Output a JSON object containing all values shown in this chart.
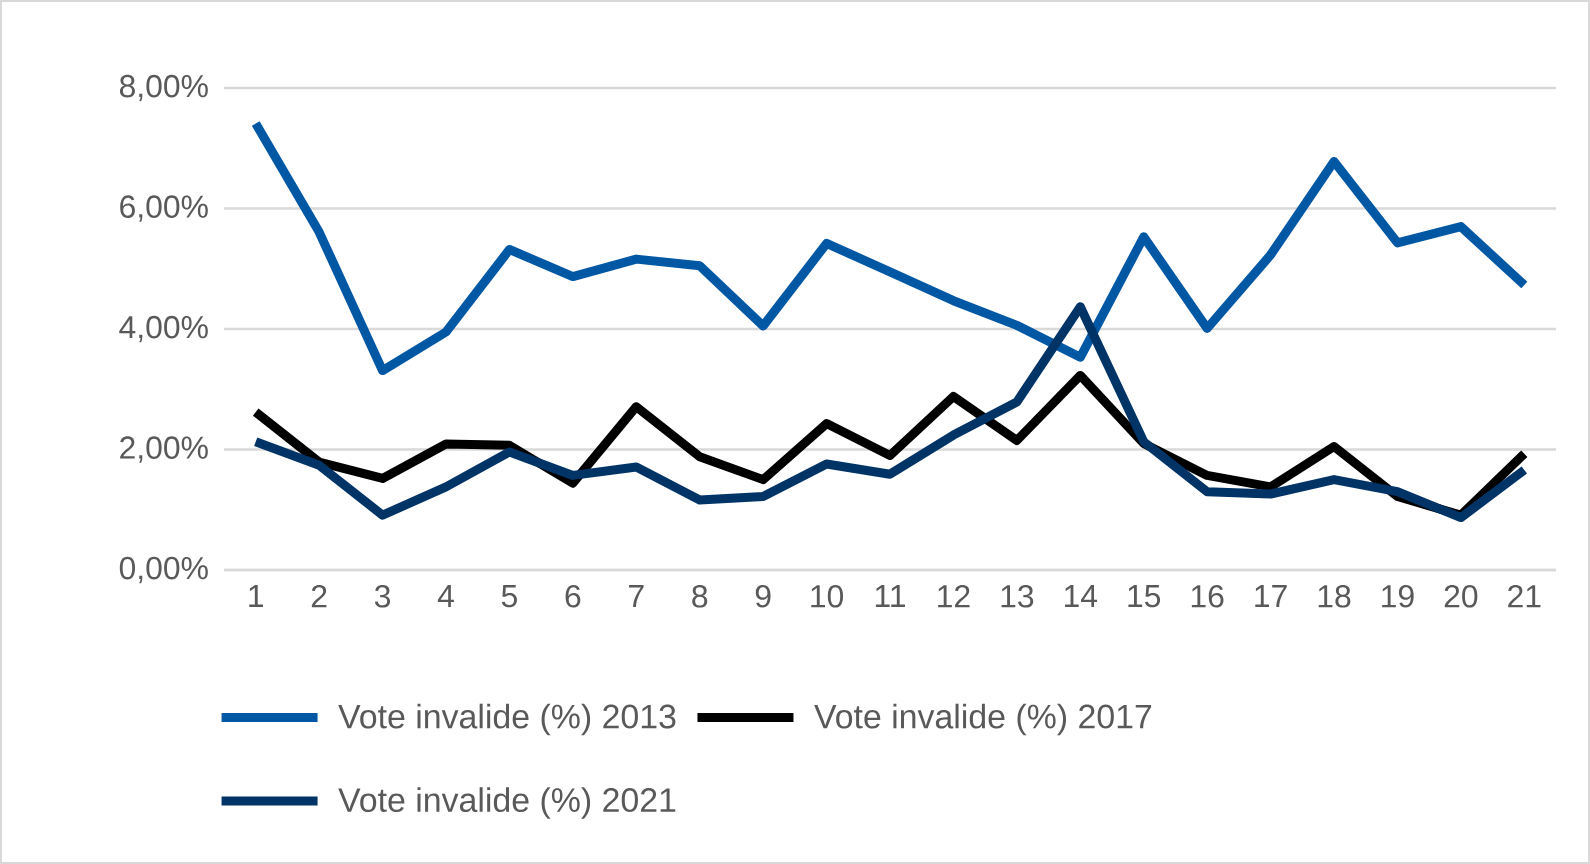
{
  "chart_data": {
    "type": "line",
    "categories": [
      "1",
      "2",
      "3",
      "4",
      "5",
      "6",
      "7",
      "8",
      "9",
      "10",
      "11",
      "12",
      "13",
      "14",
      "15",
      "16",
      "17",
      "18",
      "19",
      "20",
      "21"
    ],
    "series": [
      {
        "name": "Vote invalide (%) 2013",
        "color": "#0057a4",
        "values": [
          7.41,
          5.61,
          3.31,
          3.95,
          5.32,
          4.87,
          5.16,
          5.05,
          4.05,
          5.42,
          4.95,
          4.47,
          4.06,
          3.53,
          5.53,
          4.01,
          5.23,
          6.78,
          5.43,
          5.7,
          4.73
        ]
      },
      {
        "name": "Vote invalide (%) 2017",
        "color": "#000000",
        "values": [
          2.62,
          1.79,
          1.52,
          2.09,
          2.07,
          1.44,
          2.71,
          1.88,
          1.5,
          2.43,
          1.9,
          2.88,
          2.15,
          3.23,
          2.1,
          1.57,
          1.38,
          2.05,
          1.22,
          0.91,
          1.93
        ]
      },
      {
        "name": "Vote invalide (%) 2021",
        "color": "#003366",
        "values": [
          2.13,
          1.74,
          0.91,
          1.38,
          1.96,
          1.57,
          1.71,
          1.16,
          1.22,
          1.76,
          1.59,
          2.24,
          2.79,
          4.37,
          2.13,
          1.3,
          1.26,
          1.5,
          1.3,
          0.87,
          1.66
        ]
      }
    ],
    "ylim": [
      0,
      8
    ],
    "yticks": [
      {
        "value": 0,
        "label": "0,00%"
      },
      {
        "value": 2,
        "label": "2,00%"
      },
      {
        "value": 4,
        "label": "4,00%"
      },
      {
        "value": 6,
        "label": "6,00%"
      },
      {
        "value": 8,
        "label": "8,00%"
      }
    ],
    "grid": "y",
    "legend": "bottom",
    "line_style": "solid",
    "marker": "none"
  }
}
